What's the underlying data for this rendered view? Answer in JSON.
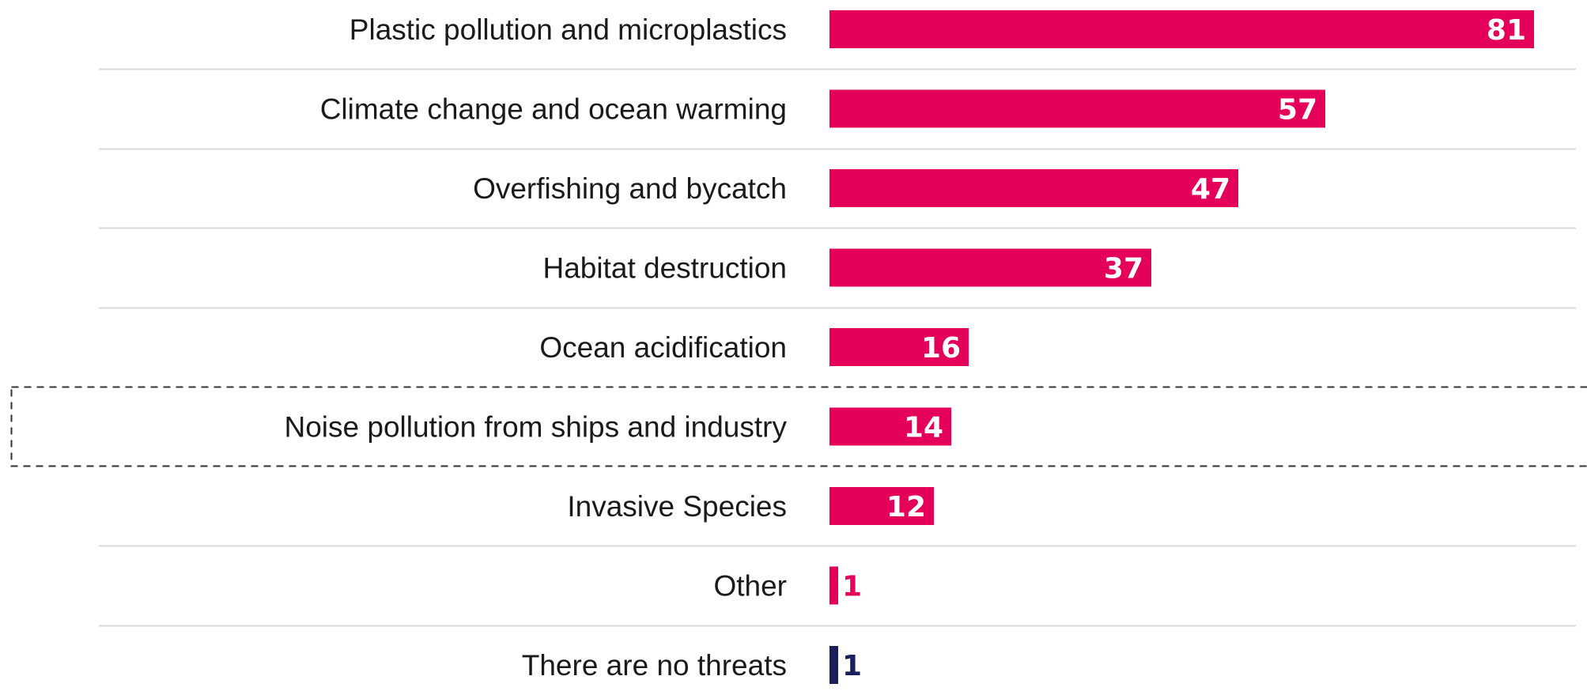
{
  "chart_data": {
    "type": "bar",
    "orientation": "horizontal",
    "categories": [
      "Plastic pollution and microplastics",
      "Climate change and ocean warming",
      "Overfishing and bycatch",
      "Habitat destruction",
      "Ocean acidification",
      "Noise pollution from ships and industry",
      "Invasive Species",
      "Other",
      "There are no threats"
    ],
    "values": [
      81,
      57,
      47,
      37,
      16,
      14,
      12,
      1,
      1
    ],
    "value_labels": [
      "81",
      "57",
      "47",
      "37",
      "16",
      "14",
      "12",
      "1",
      "1"
    ],
    "xlim": [
      0,
      81
    ],
    "highlighted_category": "Noise pollution from ships and industry",
    "grid": false,
    "legend": "none",
    "colors": {
      "bar": "#e4005a",
      "bar_last": "#1a1f5c",
      "value_inside": "#ffffff",
      "separator": "#d9d9d9",
      "highlight_border": "#333333"
    }
  }
}
